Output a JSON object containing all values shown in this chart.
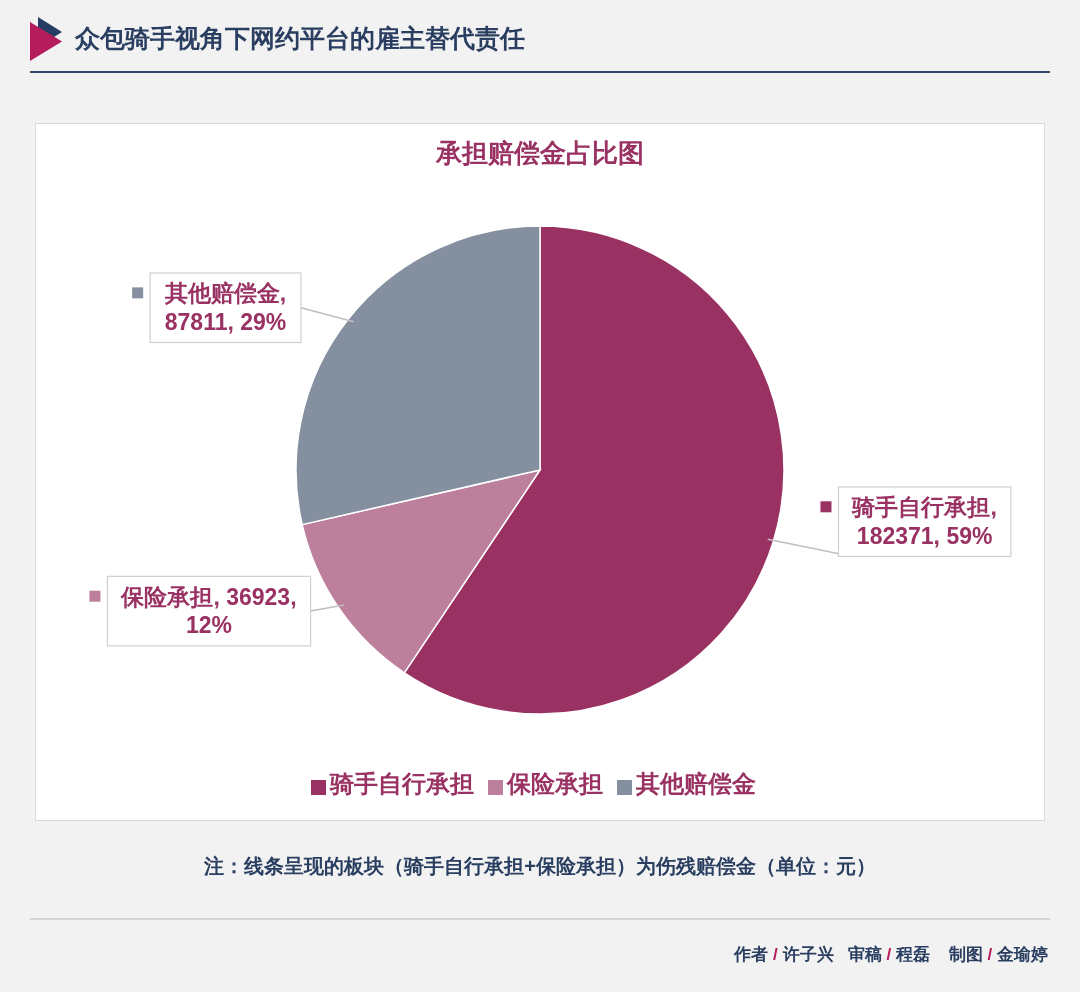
{
  "chart_data": {
    "type": "pie",
    "title": "众包骑手视角下网约平台的雇主替代责任",
    "subtitle": "承担赔偿金占比图",
    "categories": [
      "骑手自行承担",
      "保险承担",
      "其他赔偿金"
    ],
    "values": [
      182371,
      36923,
      87811
    ],
    "colors": [
      "#993162",
      "#bc809c",
      "#848f9f"
    ],
    "value_labels": [
      "骑手自行承担, 182371, 59%",
      "保险承担, 36923, 12%",
      "其他赔偿金, 87811, 29%"
    ],
    "legend": "bottom",
    "annotations": [
      "注：线条呈现的板块（骑手自行承担+保险承担）为伤残赔偿金（单位：元）",
      "作者 / 许子兴   审稿 / 程磊    制图 / 金瑜婷"
    ]
  }
}
